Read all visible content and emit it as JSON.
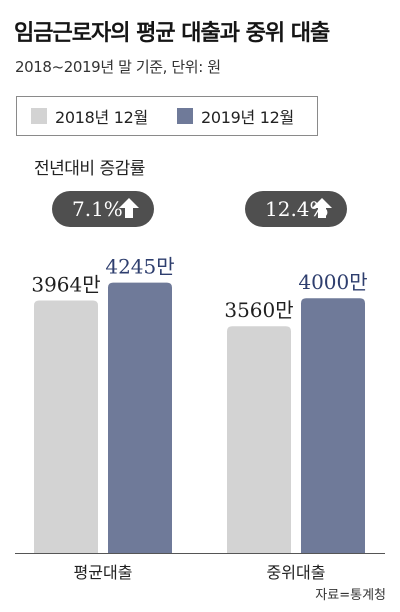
{
  "title": "임금근로자의 평균 대출과 중위 대출",
  "subtitle": "2018~2019년 말 기준, 단위: 원",
  "change_label": "전년대비 증감률",
  "source": "자료=통계청",
  "colors": {
    "series_2018": "#d3d3d3",
    "series_2019": "#6f7a99",
    "badge": "#4f4f4f",
    "badge_text": "#ffffff",
    "label_2019": "#2e3e6e",
    "label_2018": "#1f1f1f"
  },
  "chart_data": {
    "type": "bar",
    "categories": [
      "평균대출",
      "중위대출"
    ],
    "series": [
      {
        "name": "2018년 12월",
        "values": [
          3964,
          3560
        ],
        "labels": [
          "3964만",
          "3560만"
        ]
      },
      {
        "name": "2019년 12월",
        "values": [
          4245,
          4000
        ],
        "labels": [
          "4245만",
          "4000만"
        ]
      }
    ],
    "changes": [
      "7.1%",
      "12.4%"
    ],
    "unit": "만원",
    "ylim": [
      0,
      4600
    ],
    "legend": "top",
    "grid": false
  }
}
